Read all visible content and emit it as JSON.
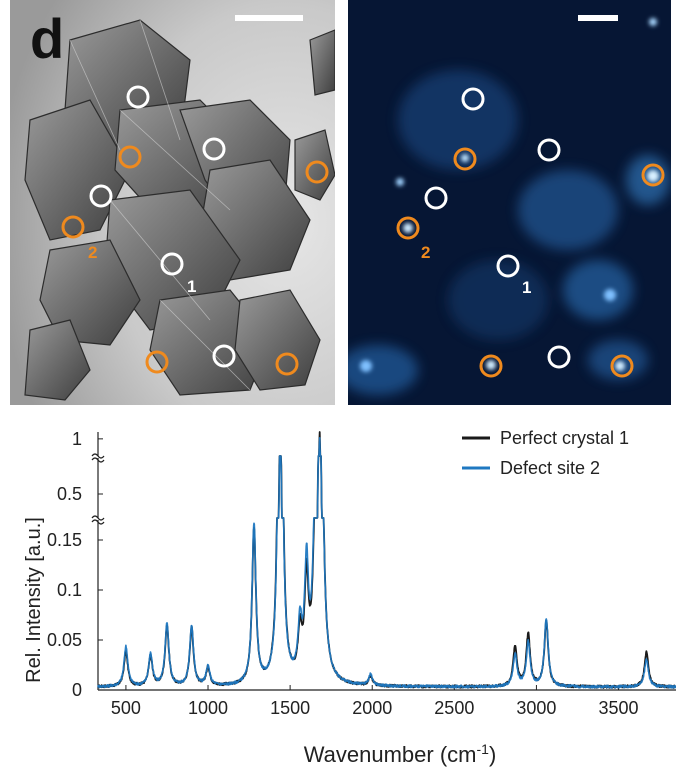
{
  "panel_label": "d",
  "markers": {
    "site_1": "1",
    "site_2": "2"
  },
  "colors": {
    "perfect": "#1a1a1a",
    "defect": "#1f78c1",
    "circle_orange": "#ef8a1e",
    "circle_white": "#ffffff",
    "fluorescence_bg": "#061634"
  },
  "chart_data": {
    "type": "line",
    "xlabel": "Wavenumber (cm-1)",
    "xlabel_parts": {
      "main": "Wavenumber (cm",
      "sup": "-1",
      "end": ")"
    },
    "ylabel": "Rel. Intensity [a.u.]",
    "xlim": [
      330,
      3850
    ],
    "x_ticks": [
      "500",
      "1000",
      "1500",
      "2000",
      "2500",
      "3000",
      "3500"
    ],
    "x_tick_values": [
      500,
      1000,
      1500,
      2000,
      2500,
      3000,
      3500
    ],
    "y_ticks": [
      "0",
      "0.05",
      "0.1",
      "0.15",
      "0.5",
      "1"
    ],
    "y_tick_values": [
      0,
      0.05,
      0.1,
      0.15,
      0.5,
      1
    ],
    "y_axis_break": "two breaks: between 0.15 and 0.5, and between 0.5 and 1",
    "legend_position": "top-right",
    "series": [
      {
        "name": "Perfect crystal 1",
        "color": "#1a1a1a",
        "peaks": [
          [
            500,
            0.035
          ],
          [
            650,
            0.03
          ],
          [
            750,
            0.06
          ],
          [
            900,
            0.058
          ],
          [
            1000,
            0.018
          ],
          [
            1280,
            0.155
          ],
          [
            1440,
            0.76
          ],
          [
            1560,
            0.045
          ],
          [
            1600,
            0.095
          ],
          [
            1650,
            0.07
          ],
          [
            1680,
            1.0
          ],
          [
            1990,
            0.009
          ],
          [
            2870,
            0.04
          ],
          [
            2950,
            0.052
          ],
          [
            3060,
            0.065
          ],
          [
            3670,
            0.035
          ]
        ]
      },
      {
        "name": "Defect site 2",
        "color": "#1f78c1",
        "peaks": [
          [
            500,
            0.04
          ],
          [
            650,
            0.032
          ],
          [
            750,
            0.062
          ],
          [
            900,
            0.06
          ],
          [
            1000,
            0.019
          ],
          [
            1280,
            0.16
          ],
          [
            1440,
            0.72
          ],
          [
            1560,
            0.052
          ],
          [
            1600,
            0.11
          ],
          [
            1650,
            0.085
          ],
          [
            1680,
            0.98
          ],
          [
            1990,
            0.011
          ],
          [
            2870,
            0.032
          ],
          [
            2950,
            0.044
          ],
          [
            3060,
            0.068
          ],
          [
            3670,
            0.028
          ]
        ]
      }
    ]
  }
}
